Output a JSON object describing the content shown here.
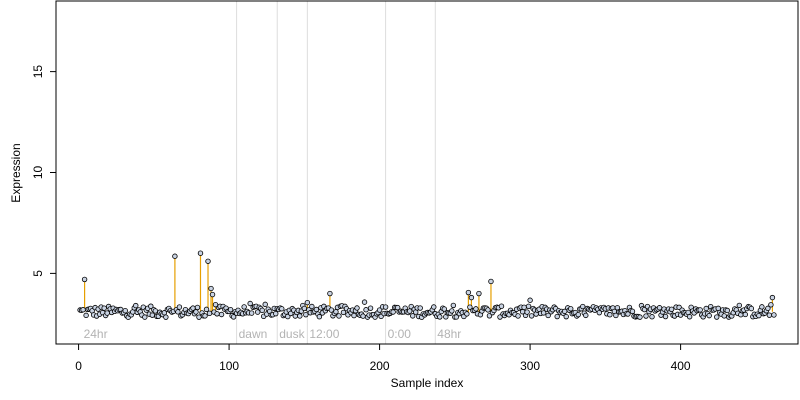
{
  "chart_data": {
    "type": "scatter",
    "title": "",
    "xlabel": "Sample index",
    "ylabel": "Expression",
    "xlim": [
      -15,
      478
    ],
    "ylim": [
      1.5,
      18.5
    ],
    "x_ticks": [
      0,
      100,
      200,
      300,
      400
    ],
    "y_ticks": [
      5,
      10,
      15
    ],
    "grid": false,
    "baseline": 3.1,
    "colors": {
      "points_fill": "#c9d3e3",
      "points_stroke": "#000000",
      "stems": "#e69f00",
      "dividers": "#dddddd",
      "region_labels": "#b3b3b3",
      "axis": "#000000"
    },
    "regions": [
      {
        "label": "24hr",
        "x": 2
      },
      {
        "label": "dawn",
        "x": 105
      },
      {
        "label": "dusk",
        "x": 132
      },
      {
        "label": "12:00",
        "x": 152
      },
      {
        "label": "0:00",
        "x": 204
      },
      {
        "label": "48hr",
        "x": 237
      }
    ],
    "dividers": [
      105,
      132,
      152,
      204,
      237
    ],
    "highlights": [
      {
        "x": 4,
        "y": 4.7
      },
      {
        "x": 64,
        "y": 5.85
      },
      {
        "x": 81,
        "y": 6.0
      },
      {
        "x": 86,
        "y": 5.6
      },
      {
        "x": 88,
        "y": 4.25
      },
      {
        "x": 89,
        "y": 3.95
      },
      {
        "x": 91,
        "y": 3.45
      },
      {
        "x": 152,
        "y": 3.55
      },
      {
        "x": 167,
        "y": 4.0
      },
      {
        "x": 259,
        "y": 4.05
      },
      {
        "x": 261,
        "y": 3.8
      },
      {
        "x": 266,
        "y": 4.0
      },
      {
        "x": 274,
        "y": 4.6
      },
      {
        "x": 461,
        "y": 3.8
      }
    ]
  }
}
